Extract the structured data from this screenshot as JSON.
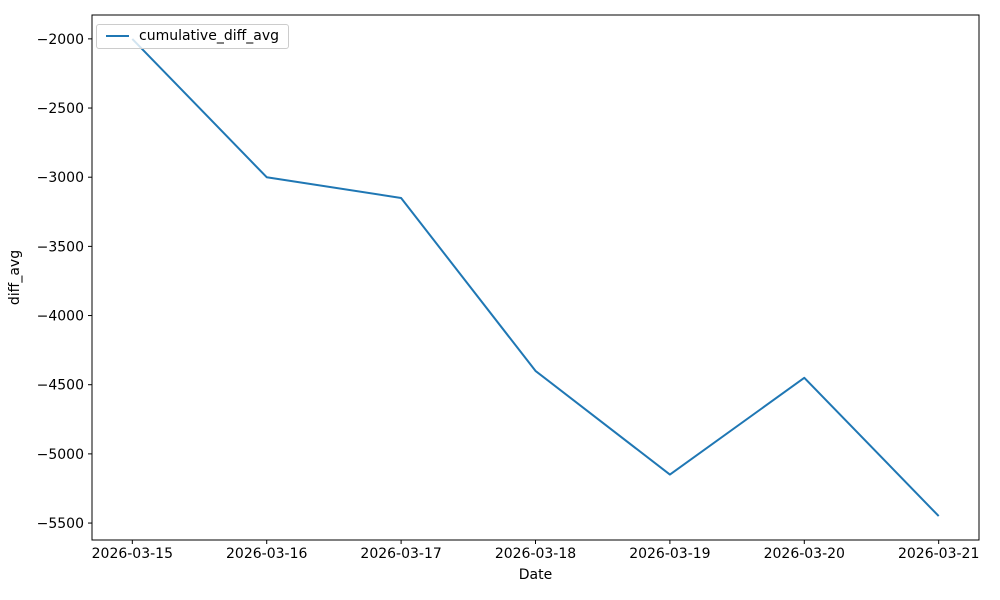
{
  "figure": {
    "background": "#ffffff",
    "text_color": "#000000",
    "spine_color": "#000000",
    "legend_border_color": "#cccccc"
  },
  "chart_data": {
    "type": "line",
    "title": "",
    "xlabel": "Date",
    "ylabel": "diff_avg",
    "categories": [
      "2026-03-15",
      "2026-03-16",
      "2026-03-17",
      "2026-03-18",
      "2026-03-19",
      "2026-03-20",
      "2026-03-21"
    ],
    "series": [
      {
        "name": "cumulative_diff_avg",
        "color": "#1f77b4",
        "values": [
          -2000,
          -3000,
          -3150,
          -4400,
          -5150,
          -4450,
          -5450
        ]
      }
    ],
    "yticks": [
      -5500,
      -5000,
      -4500,
      -4000,
      -3500,
      -3000,
      -2500,
      -2000
    ],
    "ylim": [
      -5622.5,
      -1827.5
    ],
    "xlim": [
      -0.3,
      6.3
    ],
    "grid": false,
    "legend_position": "upper left"
  }
}
